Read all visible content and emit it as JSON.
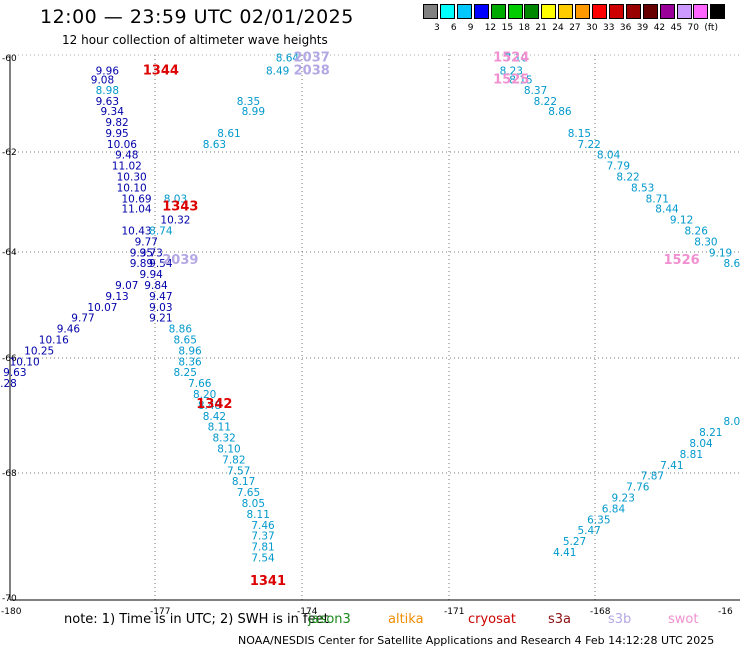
{
  "title": "12:00 — 23:59 UTC 02/01/2025",
  "subtitle": "12 hour collection of altimeter wave heights",
  "note": "note:  1) Time is in UTC;  2) SWH is in feet",
  "credit": "NOAA/NESDIS Center for Satellite Applications and Research     4 Feb 14:12:28 UTC 2025",
  "satellites": [
    {
      "name": "jason3",
      "color": "#1a8a1a"
    },
    {
      "name": "altika",
      "color": "#f08c00"
    },
    {
      "name": "cryosat",
      "color": "#cc0000"
    },
    {
      "name": "s3a",
      "color": "#8b1010"
    },
    {
      "name": "s3b",
      "color": "#b4a8e4"
    },
    {
      "name": "swot",
      "color": "#f090d0"
    }
  ],
  "colorbar": {
    "colors": [
      "#808080",
      "#00ffff",
      "#00c8ff",
      "#0000ff",
      "#00aa00",
      "#00cc00",
      "#008800",
      "#ffff00",
      "#ffcc00",
      "#ff9900",
      "#ff0000",
      "#cc0000",
      "#990000",
      "#660000",
      "#990099",
      "#cc99ff",
      "#ff66ff",
      "#000000"
    ],
    "labels": [
      "3",
      "6",
      "9",
      "12",
      "15",
      "18",
      "21",
      "24",
      "27",
      "30",
      "33",
      "36",
      "39",
      "42",
      "45",
      "70",
      "(ft)"
    ]
  },
  "chart_data": {
    "type": "map",
    "x_ticks": [
      "-180",
      "-177",
      "-174",
      "-171",
      "-168",
      "-16"
    ],
    "y_ticks": [
      "-60",
      "-62",
      "-64",
      "-66",
      "-68",
      "-70"
    ],
    "time_labels": [
      {
        "text": "1344",
        "color": "#dd0000",
        "lon": -176.9,
        "lat": -60.28
      },
      {
        "text": "1343",
        "color": "#dd0000",
        "lon": -176.5,
        "lat": -62.78
      },
      {
        "text": "1342",
        "color": "#dd0000",
        "lon": -175.8,
        "lat": -66.4
      },
      {
        "text": "1341",
        "color": "#dd0000",
        "lon": -174.7,
        "lat": -69.65
      },
      {
        "text": "2037",
        "color": "#b4a8e4",
        "lon": -173.8,
        "lat": -60.05
      },
      {
        "text": "2038",
        "color": "#b4a8e4",
        "lon": -173.8,
        "lat": -60.28
      },
      {
        "text": "2039",
        "color": "#b4a8e4",
        "lon": -176.5,
        "lat": -63.76
      },
      {
        "text": "1524",
        "color": "#f090d0",
        "lon": -169.7,
        "lat": -60.05
      },
      {
        "text": "1525",
        "color": "#f090d0",
        "lon": -169.7,
        "lat": -60.45
      },
      {
        "text": "1526",
        "color": "#f090d0",
        "lon": -166.2,
        "lat": -63.76
      }
    ],
    "tracks": [
      {
        "name": "track-a",
        "color": "#0000aa",
        "points": [
          [
            "9.96",
            -178.0,
            -60.28
          ],
          [
            "9.08",
            -178.1,
            -60.45
          ],
          [
            "9.63",
            -178.0,
            -60.84
          ],
          [
            "9.34",
            -177.9,
            -61.03
          ],
          [
            "9.82",
            -177.8,
            -61.23
          ],
          [
            "9.95",
            -177.8,
            -61.43
          ],
          [
            "10.06",
            -177.7,
            -61.63
          ],
          [
            "9.48",
            -177.6,
            -61.83
          ],
          [
            "11.02",
            -177.6,
            -62.03
          ],
          [
            "10.30",
            -177.5,
            -62.23
          ],
          [
            "10.10",
            -177.5,
            -62.43
          ],
          [
            "10.69",
            -177.4,
            -62.63
          ],
          [
            "11.04",
            -177.4,
            -62.82
          ],
          [
            "10.32",
            -176.6,
            -63.02
          ],
          [
            "10.43",
            -177.4,
            -63.22
          ],
          [
            "9.77",
            -177.2,
            -63.42
          ],
          [
            "9.73",
            -177.1,
            -63.62
          ],
          [
            "9.35",
            -177.3,
            -63.62
          ],
          [
            "9.54",
            -176.9,
            -63.82
          ],
          [
            "9.89",
            -177.3,
            -63.82
          ],
          [
            "9.94",
            -177.1,
            -64.02
          ],
          [
            "9.07",
            -177.6,
            -64.22
          ],
          [
            "9.84",
            -177.0,
            -64.22
          ],
          [
            "9.13",
            -177.8,
            -64.42
          ],
          [
            "9.47",
            -176.9,
            -64.42
          ],
          [
            "10.07",
            -178.1,
            -64.62
          ],
          [
            "9.03",
            -176.9,
            -64.62
          ],
          [
            "9.77",
            -178.5,
            -64.82
          ],
          [
            "9.21",
            -176.9,
            -64.82
          ],
          [
            "9.46",
            -178.8,
            -65.02
          ],
          [
            "10.16",
            -179.1,
            -65.22
          ],
          [
            "10.25",
            -179.4,
            -65.42
          ],
          [
            "10.10",
            -179.7,
            -65.62
          ],
          [
            "9.63",
            -179.9,
            -65.82
          ],
          [
            "9.28",
            -180.1,
            -66.02
          ]
        ]
      },
      {
        "name": "track-b",
        "color": "#0099cc",
        "points": [
          [
            "8.98",
            -178.0,
            -60.64
          ],
          [
            "8.74",
            -176.9,
            -63.22
          ],
          [
            "8.03",
            -176.6,
            -62.63
          ],
          [
            "8.64",
            -174.3,
            -60.05
          ],
          [
            "8.49",
            -174.5,
            -60.28
          ],
          [
            "8.35",
            -175.1,
            -60.84
          ],
          [
            "8.99",
            -175.0,
            -61.03
          ],
          [
            "8.61",
            -175.5,
            -61.43
          ],
          [
            "8.63",
            -175.8,
            -61.63
          ],
          [
            "8.86",
            -176.5,
            -65.02
          ],
          [
            "8.65",
            -176.4,
            -65.22
          ],
          [
            "8.96",
            -176.3,
            -65.42
          ],
          [
            "8.36",
            -176.3,
            -65.62
          ],
          [
            "8.25",
            -176.4,
            -65.82
          ],
          [
            "7.66",
            -176.1,
            -66.02
          ],
          [
            "8.20",
            -176.0,
            -66.22
          ],
          [
            "8.48",
            -175.9,
            -66.42
          ],
          [
            "8.42",
            -175.8,
            -66.62
          ],
          [
            "8.11",
            -175.7,
            -66.82
          ],
          [
            "8.32",
            -175.6,
            -67.02
          ],
          [
            "8.10",
            -175.5,
            -67.22
          ],
          [
            "7.82",
            -175.4,
            -67.42
          ],
          [
            "7.57",
            -175.3,
            -67.62
          ],
          [
            "8.17",
            -175.2,
            -67.82
          ],
          [
            "7.65",
            -175.1,
            -68.02
          ],
          [
            "8.05",
            -175.0,
            -68.22
          ],
          [
            "8.11",
            -174.9,
            -68.42
          ],
          [
            "7.46",
            -174.8,
            -68.62
          ],
          [
            "7.37",
            -174.8,
            -68.82
          ],
          [
            "7.81",
            -174.8,
            -69.02
          ],
          [
            "7.54",
            -174.8,
            -69.22
          ],
          [
            "7.10",
            -169.6,
            -60.05
          ],
          [
            "8.23",
            -169.7,
            -60.28
          ],
          [
            "8.15",
            -169.5,
            -60.45
          ],
          [
            "8.37",
            -169.2,
            -60.64
          ],
          [
            "8.22",
            -169.0,
            -60.84
          ],
          [
            "8.86",
            -168.7,
            -61.03
          ],
          [
            "8.15",
            -168.3,
            -61.43
          ],
          [
            "7.22",
            -168.1,
            -61.63
          ],
          [
            "8.04",
            -167.7,
            -61.83
          ],
          [
            "7.79",
            -167.5,
            -62.03
          ],
          [
            "8.22",
            -167.3,
            -62.23
          ],
          [
            "8.53",
            -167.0,
            -62.43
          ],
          [
            "8.71",
            -166.7,
            -62.63
          ],
          [
            "8.44",
            -166.5,
            -62.82
          ],
          [
            "9.12",
            -166.2,
            -63.02
          ],
          [
            "8.26",
            -165.9,
            -63.22
          ],
          [
            "8.30",
            -165.7,
            -63.42
          ],
          [
            "9.19",
            -165.4,
            -63.62
          ],
          [
            "8.69",
            -165.1,
            -63.82
          ],
          [
            "9.30",
            -164.8,
            -64.02
          ],
          [
            "8.3",
            -164.9,
            -66.52
          ],
          [
            "8.05",
            -165.1,
            -66.72
          ],
          [
            "8.21",
            -165.6,
            -66.92
          ],
          [
            "8.04",
            -165.8,
            -67.12
          ],
          [
            "8.81",
            -166.0,
            -67.32
          ],
          [
            "7.41",
            -166.4,
            -67.52
          ],
          [
            "7.87",
            -166.8,
            -67.72
          ],
          [
            "7.76",
            -167.1,
            -67.92
          ],
          [
            "9.23",
            -167.4,
            -68.12
          ],
          [
            "6.84",
            -167.6,
            -68.32
          ],
          [
            "6.35",
            -167.9,
            -68.52
          ],
          [
            "5.47",
            -168.1,
            -68.72
          ],
          [
            "5.27",
            -168.4,
            -68.92
          ],
          [
            "4.41",
            -168.6,
            -69.12
          ]
        ]
      }
    ]
  }
}
